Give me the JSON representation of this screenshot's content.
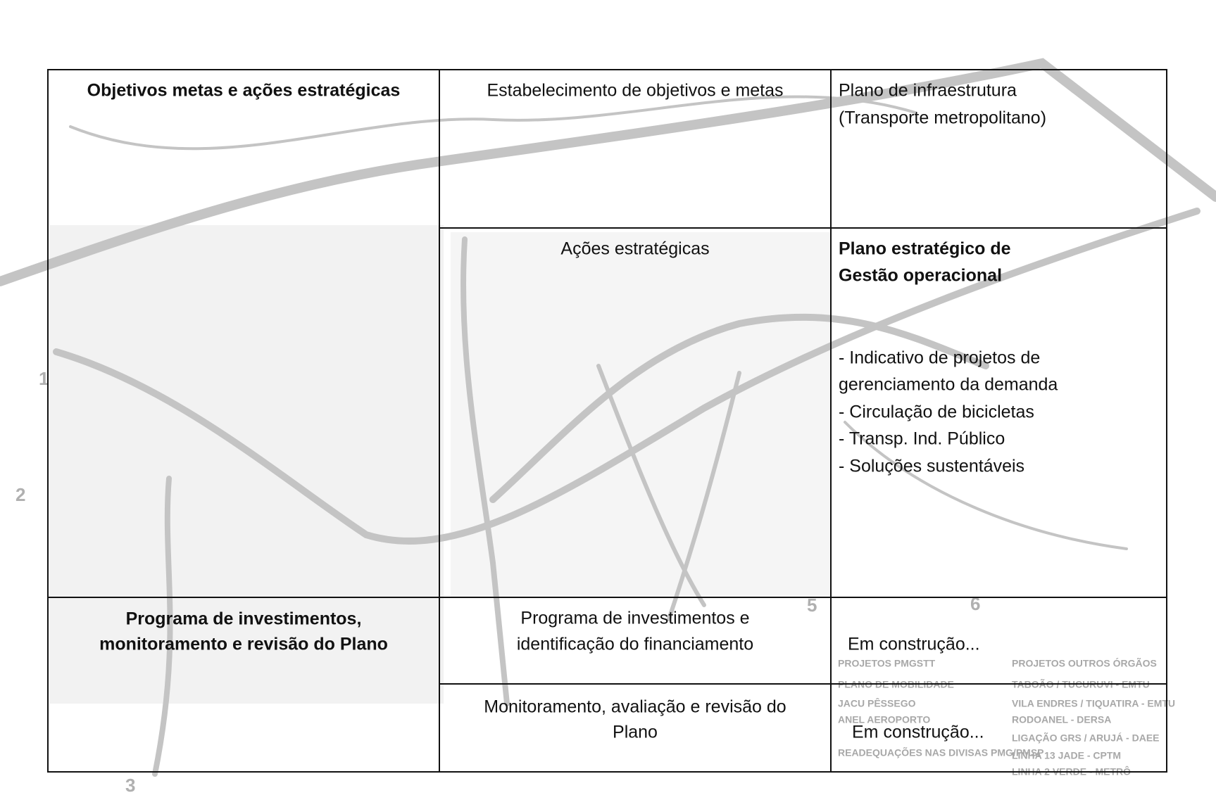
{
  "table": {
    "rows": [
      {
        "cells": [
          {
            "lines": [
              "Objetivos metas e ações estratégicas"
            ]
          },
          {
            "lines": [
              "Estabelecimento de objetivos e metas"
            ]
          },
          {
            "lines": [
              "Plano de infraestrutura",
              "(Transporte metropolitano)"
            ]
          }
        ]
      },
      {
        "cells": [
          {
            "lines": [
              "Ações estratégicas"
            ]
          },
          {
            "title": [
              "Plano estratégico de",
              "Gestão operacional"
            ],
            "lines": [
              "- Indicativo de projetos de",
              "gerenciamento da demanda",
              "- Circulação de bicicletas",
              "- Transp. Ind. Público",
              "- Soluções sustentáveis"
            ]
          }
        ]
      },
      {
        "cells": [
          {
            "lines": [
              "Programa de investimentos,",
              "monitoramento e revisão do Plano"
            ]
          },
          {
            "lines": [
              "Programa de investimentos e",
              "identificação do financiamento"
            ]
          },
          {
            "lines": [
              "Em construção..."
            ]
          }
        ]
      },
      {
        "cells": [
          {
            "lines": [
              "Monitoramento, avaliação e revisão do",
              "Plano"
            ]
          },
          {
            "lines": [
              "Em construção..."
            ]
          }
        ]
      }
    ]
  },
  "map": {
    "legend_left": {
      "title": "PROJETOS PMGSTT",
      "items": [
        "PLANO DE MOBILIDADE",
        "JACU PÊSSEGO",
        "ANEL AEROPORTO",
        "READEQUAÇÕES NAS DIVISAS PMG/PMSP"
      ]
    },
    "legend_right": {
      "title": "PROJETOS OUTROS ÓRGÃOS",
      "items": [
        "TABOÃO / TUCURUVI - EMTU",
        "VILA ENDRES / TIQUATIRA - EMTU",
        "RODOANEL - DERSA",
        "LIGAÇÃO GRS / ARUJÁ - DAEE",
        "LINHA 13 JADE - CPTM",
        "LINHA 2 VERDE - METRÔ"
      ]
    },
    "markers": [
      "1",
      "2",
      "3",
      "5",
      "6"
    ]
  }
}
